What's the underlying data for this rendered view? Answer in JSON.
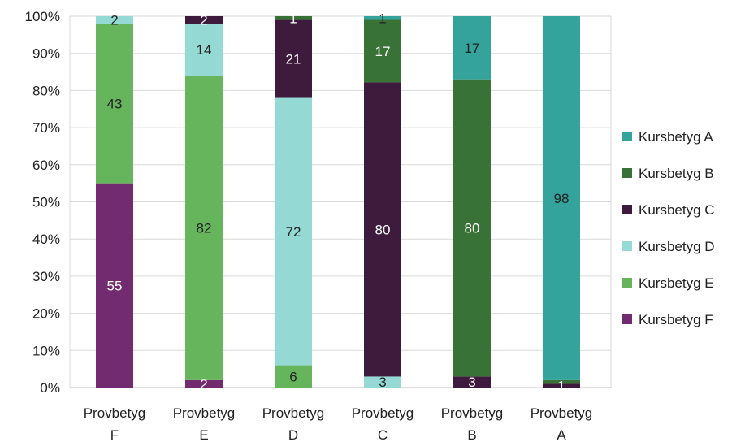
{
  "chart_data": {
    "type": "bar",
    "stacked": true,
    "normalized": true,
    "categories": [
      "Provbetyg F",
      "Provbetyg E",
      "Provbetyg D",
      "Provbetyg C",
      "Provbetyg B",
      "Provbetyg A"
    ],
    "category_lines": [
      [
        "Provbetyg",
        "F"
      ],
      [
        "Provbetyg",
        "E"
      ],
      [
        "Provbetyg",
        "D"
      ],
      [
        "Provbetyg",
        "C"
      ],
      [
        "Provbetyg",
        "B"
      ],
      [
        "Provbetyg",
        "A"
      ]
    ],
    "ylim": [
      0,
      100
    ],
    "yticks": [
      "0%",
      "10%",
      "20%",
      "30%",
      "40%",
      "50%",
      "60%",
      "70%",
      "80%",
      "90%",
      "100%"
    ],
    "grid": true,
    "legend_position": "right",
    "series": [
      {
        "name": "Kursbetyg F",
        "color": "#722B6E",
        "label_color": "#ffffff",
        "values": [
          55,
          2,
          0,
          0,
          0,
          0
        ],
        "labels": [
          "55",
          "2",
          "",
          "",
          "",
          ""
        ]
      },
      {
        "name": "Kursbetyg E",
        "color": "#66B55C",
        "label_color": "#222222",
        "values": [
          43,
          82,
          6,
          0,
          0,
          0
        ],
        "labels": [
          "43",
          "82",
          "6",
          "",
          "",
          ""
        ]
      },
      {
        "name": "Kursbetyg D",
        "color": "#94D9D4",
        "label_color": "#222222",
        "values": [
          2,
          14,
          72,
          3,
          0,
          0
        ],
        "labels": [
          "2",
          "14",
          "72",
          "3",
          "",
          ""
        ]
      },
      {
        "name": "Kursbetyg C",
        "color": "#3E1B3D",
        "label_color": "#ffffff",
        "values": [
          0,
          2,
          21,
          80,
          3,
          1
        ],
        "labels": [
          "",
          "2",
          "21",
          "80",
          "3",
          "1"
        ]
      },
      {
        "name": "Kursbetyg B",
        "color": "#387236",
        "label_color": "#ffffff",
        "values": [
          0,
          0,
          1,
          17,
          80,
          1
        ],
        "labels": [
          "",
          "",
          "1",
          "17",
          "80",
          ""
        ]
      },
      {
        "name": "Kursbetyg A",
        "color": "#33A39B",
        "label_color": "#222222",
        "values": [
          0,
          0,
          0,
          1,
          17,
          98
        ],
        "labels": [
          "",
          "",
          "",
          "1",
          "17",
          "98"
        ]
      }
    ]
  }
}
